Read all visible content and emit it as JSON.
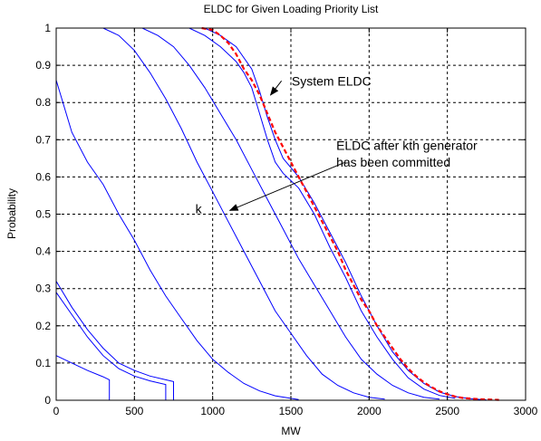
{
  "chart_data": {
    "type": "line",
    "title": "ELDC for Given Loading Priority List",
    "xlabel": "MW",
    "ylabel": "Probability",
    "xlim": [
      0,
      3000
    ],
    "ylim": [
      0,
      1
    ],
    "grid": true,
    "x_ticks": [
      "0",
      "500",
      "1000",
      "1500",
      "2000",
      "2500",
      "3000"
    ],
    "y_ticks": [
      "0",
      "0.1",
      "0.2",
      "0.3",
      "0.4",
      "0.5",
      "0.6",
      "0.7",
      "0.8",
      "0.9",
      "1"
    ],
    "colors": {
      "series": "#0000ff",
      "system": "#ff0000",
      "grid": "#000000"
    },
    "series": [
      {
        "style": "solid",
        "color": "#0000ff",
        "points": [
          [
            0,
            0.12
          ],
          [
            100,
            0.1
          ],
          [
            200,
            0.08
          ],
          [
            300,
            0.063
          ],
          [
            340,
            0.055
          ],
          [
            340,
            0
          ]
        ]
      },
      {
        "style": "solid",
        "color": "#0000ff",
        "points": [
          [
            0,
            0.29
          ],
          [
            100,
            0.23
          ],
          [
            200,
            0.17
          ],
          [
            300,
            0.12
          ],
          [
            400,
            0.085
          ],
          [
            500,
            0.065
          ],
          [
            600,
            0.052
          ],
          [
            700,
            0.042
          ],
          [
            700,
            0
          ]
        ]
      },
      {
        "style": "solid",
        "color": "#0000ff",
        "points": [
          [
            0,
            0.32
          ],
          [
            100,
            0.25
          ],
          [
            200,
            0.19
          ],
          [
            300,
            0.14
          ],
          [
            400,
            0.1
          ],
          [
            500,
            0.08
          ],
          [
            600,
            0.065
          ],
          [
            700,
            0.055
          ],
          [
            750,
            0.05
          ],
          [
            750,
            0
          ]
        ]
      },
      {
        "style": "solid",
        "color": "#0000ff",
        "points": [
          [
            0,
            0.86
          ],
          [
            100,
            0.72
          ],
          [
            200,
            0.64
          ],
          [
            300,
            0.58
          ],
          [
            400,
            0.5
          ],
          [
            500,
            0.43
          ],
          [
            600,
            0.35
          ],
          [
            700,
            0.28
          ],
          [
            800,
            0.22
          ],
          [
            900,
            0.16
          ],
          [
            1000,
            0.11
          ],
          [
            1100,
            0.075
          ],
          [
            1200,
            0.045
          ],
          [
            1300,
            0.025
          ],
          [
            1400,
            0.012
          ],
          [
            1500,
            0.005
          ],
          [
            1550,
            0.002
          ]
        ]
      },
      {
        "style": "solid",
        "color": "#0000ff",
        "points": [
          [
            0,
            1
          ],
          [
            300,
            1
          ],
          [
            400,
            0.98
          ],
          [
            500,
            0.94
          ],
          [
            600,
            0.88
          ],
          [
            700,
            0.81
          ],
          [
            800,
            0.73
          ],
          [
            900,
            0.64
          ],
          [
            1000,
            0.56
          ],
          [
            1100,
            0.48
          ],
          [
            1200,
            0.4
          ],
          [
            1300,
            0.32
          ],
          [
            1400,
            0.24
          ],
          [
            1500,
            0.18
          ],
          [
            1600,
            0.12
          ],
          [
            1700,
            0.07
          ],
          [
            1800,
            0.04
          ],
          [
            1900,
            0.02
          ],
          [
            2000,
            0.008
          ],
          [
            2100,
            0.003
          ]
        ]
      },
      {
        "style": "solid",
        "color": "#0000ff",
        "points": [
          [
            0,
            1
          ],
          [
            550,
            1
          ],
          [
            650,
            0.98
          ],
          [
            750,
            0.95
          ],
          [
            850,
            0.9
          ],
          [
            950,
            0.84
          ],
          [
            1050,
            0.77
          ],
          [
            1150,
            0.7
          ],
          [
            1250,
            0.62
          ],
          [
            1350,
            0.54
          ],
          [
            1450,
            0.46
          ],
          [
            1550,
            0.38
          ],
          [
            1650,
            0.31
          ],
          [
            1750,
            0.24
          ],
          [
            1850,
            0.17
          ],
          [
            1950,
            0.11
          ],
          [
            2050,
            0.07
          ],
          [
            2150,
            0.04
          ],
          [
            2250,
            0.02
          ],
          [
            2350,
            0.008
          ],
          [
            2450,
            0.003
          ]
        ]
      },
      {
        "style": "solid",
        "color": "#0000ff",
        "points": [
          [
            0,
            1
          ],
          [
            950,
            1
          ],
          [
            1050,
            0.98
          ],
          [
            1150,
            0.95
          ],
          [
            1250,
            0.89
          ],
          [
            1300,
            0.83
          ],
          [
            1350,
            0.76
          ],
          [
            1400,
            0.7
          ],
          [
            1450,
            0.65
          ],
          [
            1550,
            0.6
          ],
          [
            1650,
            0.53
          ],
          [
            1750,
            0.45
          ],
          [
            1850,
            0.37
          ],
          [
            1950,
            0.28
          ],
          [
            2050,
            0.2
          ],
          [
            2150,
            0.13
          ],
          [
            2250,
            0.08
          ],
          [
            2350,
            0.045
          ],
          [
            2450,
            0.022
          ],
          [
            2550,
            0.01
          ],
          [
            2650,
            0.004
          ],
          [
            2750,
            0.001
          ]
        ]
      },
      {
        "style": "solid",
        "color": "#0000ff",
        "points": [
          [
            0,
            1
          ],
          [
            850,
            1
          ],
          [
            950,
            0.98
          ],
          [
            1050,
            0.95
          ],
          [
            1150,
            0.91
          ],
          [
            1200,
            0.88
          ],
          [
            1250,
            0.84
          ],
          [
            1300,
            0.77
          ],
          [
            1350,
            0.7
          ],
          [
            1400,
            0.64
          ],
          [
            1450,
            0.61
          ],
          [
            1550,
            0.57
          ],
          [
            1650,
            0.5
          ],
          [
            1750,
            0.41
          ],
          [
            1850,
            0.33
          ],
          [
            1950,
            0.24
          ],
          [
            2050,
            0.17
          ],
          [
            2150,
            0.11
          ],
          [
            2250,
            0.06
          ],
          [
            2350,
            0.03
          ],
          [
            2450,
            0.013
          ],
          [
            2550,
            0.005
          ]
        ]
      },
      {
        "style": "dashed",
        "color": "#ff0000",
        "points": [
          [
            930,
            1
          ],
          [
            1000,
            0.995
          ],
          [
            1050,
            0.98
          ],
          [
            1100,
            0.96
          ],
          [
            1150,
            0.93
          ],
          [
            1200,
            0.89
          ],
          [
            1250,
            0.86
          ],
          [
            1300,
            0.82
          ],
          [
            1350,
            0.77
          ],
          [
            1400,
            0.72
          ],
          [
            1450,
            0.68
          ],
          [
            1500,
            0.64
          ],
          [
            1550,
            0.6
          ],
          [
            1600,
            0.56
          ],
          [
            1650,
            0.52
          ],
          [
            1700,
            0.48
          ],
          [
            1750,
            0.44
          ],
          [
            1800,
            0.4
          ],
          [
            1850,
            0.35
          ],
          [
            1900,
            0.31
          ],
          [
            1950,
            0.27
          ],
          [
            2000,
            0.24
          ],
          [
            2050,
            0.2
          ],
          [
            2100,
            0.17
          ],
          [
            2150,
            0.14
          ],
          [
            2200,
            0.11
          ],
          [
            2250,
            0.085
          ],
          [
            2300,
            0.065
          ],
          [
            2350,
            0.048
          ],
          [
            2400,
            0.035
          ],
          [
            2450,
            0.024
          ],
          [
            2500,
            0.016
          ],
          [
            2550,
            0.01
          ],
          [
            2600,
            0.006
          ],
          [
            2700,
            0.003
          ],
          [
            2830,
            0.001
          ]
        ]
      }
    ],
    "annotations": [
      {
        "id": "system",
        "text": "System ELDC",
        "text_x": 1505,
        "text_y": 0.858,
        "arrow_from": [
          1440,
          0.858
        ],
        "arrow_to": [
          1370,
          0.82
        ]
      },
      {
        "id": "after",
        "line1": "ELDC after kth generator",
        "line2": "has been committed",
        "text_x": 1790,
        "text_y": 0.673,
        "arrow_from": [
          1850,
          0.64
        ],
        "arrow_to": [
          1110,
          0.51
        ]
      },
      {
        "id": "k",
        "text": "k",
        "text_x": 890,
        "text_y": 0.515
      }
    ]
  }
}
